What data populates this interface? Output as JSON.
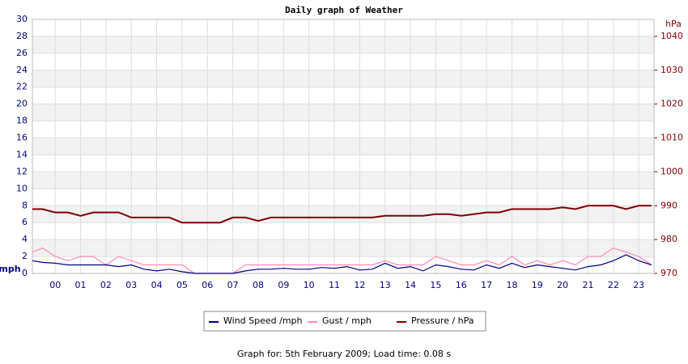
{
  "chart_data": {
    "type": "line",
    "title": "Daily graph of Weather",
    "y_label": "mph",
    "y2_label": "hPa",
    "footer": "Graph for: 5th February 2009; Load time: 0.08 s",
    "x": [
      -0.9,
      -0.5,
      0,
      0.5,
      1,
      1.5,
      2,
      2.5,
      3,
      3.5,
      4,
      4.5,
      5,
      5.5,
      6,
      6.5,
      7,
      7.5,
      8,
      8.5,
      9,
      9.5,
      10,
      10.5,
      11,
      11.5,
      12,
      12.5,
      13,
      13.5,
      14,
      14.5,
      15,
      15.5,
      16,
      16.5,
      17,
      17.5,
      18,
      18.5,
      19,
      19.5,
      20,
      20.5,
      21,
      21.5,
      22,
      22.5,
      23,
      23.5
    ],
    "xlim": [
      -0.9,
      23.6
    ],
    "xticks": [
      {
        "value": 0,
        "label": "00"
      },
      {
        "value": 1,
        "label": "01"
      },
      {
        "value": 2,
        "label": "02"
      },
      {
        "value": 3,
        "label": "03"
      },
      {
        "value": 4,
        "label": "04"
      },
      {
        "value": 5,
        "label": "05"
      },
      {
        "value": 6,
        "label": "06"
      },
      {
        "value": 7,
        "label": "07"
      },
      {
        "value": 8,
        "label": "08"
      },
      {
        "value": 9,
        "label": "09"
      },
      10,
      11,
      12,
      13,
      14,
      15,
      16,
      17,
      18,
      19,
      20,
      21,
      22,
      23
    ],
    "ylim": [
      0,
      30
    ],
    "yticks": [
      0,
      2,
      4,
      6,
      8,
      10,
      12,
      14,
      16,
      18,
      20,
      22,
      24,
      26,
      28,
      30
    ],
    "y2lim": [
      970,
      1045
    ],
    "y2ticks": [
      970,
      980,
      990,
      1000,
      1010,
      1020,
      1030,
      1040
    ],
    "grid": true,
    "series": [
      {
        "name": "Wind Speed /mph",
        "color": "#000080",
        "values": [
          1.5,
          1.3,
          1.2,
          1.0,
          1.0,
          1.0,
          1.0,
          0.8,
          1.0,
          0.5,
          0.3,
          0.5,
          0.2,
          0,
          0,
          0,
          0,
          0.3,
          0.5,
          0.5,
          0.6,
          0.5,
          0.5,
          0.7,
          0.6,
          0.8,
          0.4,
          0.5,
          1.2,
          0.6,
          0.8,
          0.3,
          1.0,
          0.8,
          0.5,
          0.4,
          1.0,
          0.6,
          1.2,
          0.7,
          1.0,
          0.8,
          0.6,
          0.4,
          0.8,
          1.0,
          1.5,
          2.2,
          1.5,
          1.0
        ]
      },
      {
        "name": "Gust / mph",
        "color": "#ff88b8",
        "values": [
          2.5,
          3,
          2,
          1.5,
          2,
          2,
          1,
          2,
          1.5,
          1,
          1,
          1,
          1,
          0,
          0,
          0,
          0,
          1,
          1,
          1,
          1,
          1,
          1,
          1,
          1,
          1,
          1,
          1,
          1.5,
          1,
          1,
          1,
          2,
          1.5,
          1,
          1,
          1.5,
          1,
          2,
          1,
          1.5,
          1,
          1.5,
          1,
          2,
          2,
          3,
          2.5,
          2,
          1
        ]
      },
      {
        "name": "Pressure / hPa",
        "color": "#800000",
        "axis": "y2",
        "values": [
          989,
          989,
          988,
          988,
          987,
          988,
          988,
          988,
          986.5,
          986.5,
          986.5,
          986.5,
          985,
          985,
          985,
          985,
          986.5,
          986.5,
          985.5,
          986.5,
          986.5,
          986.5,
          986.5,
          986.5,
          986.5,
          986.5,
          986.5,
          986.5,
          987,
          987,
          987,
          987,
          987.5,
          987.5,
          987,
          987.5,
          988,
          988,
          989,
          989,
          989,
          989,
          989.5,
          989,
          990,
          990,
          990,
          989,
          990,
          990
        ]
      }
    ]
  }
}
